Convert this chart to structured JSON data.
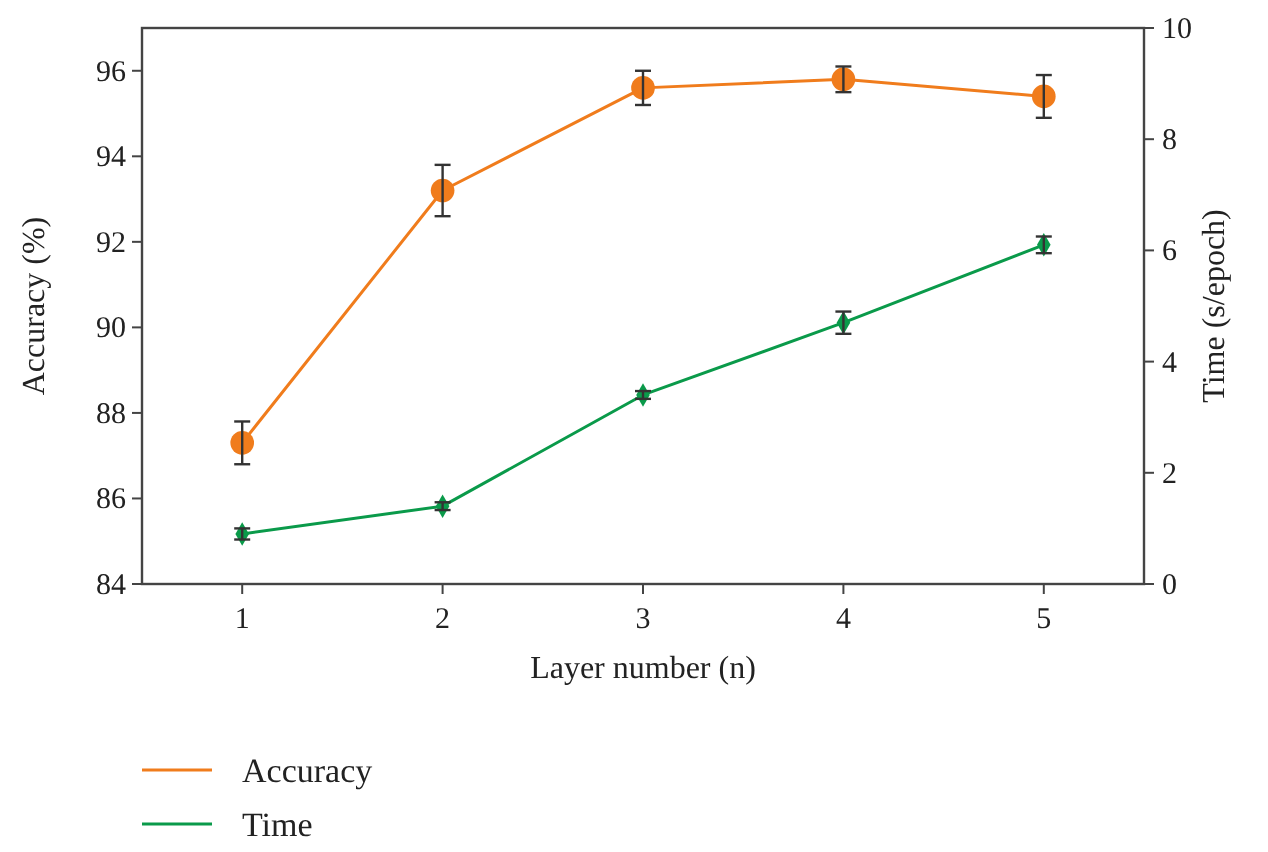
{
  "chart_data": {
    "type": "line",
    "xlabel": "Layer number (n)",
    "ylabel": "Accuracy (%)",
    "y2label": "Time (s/epoch)",
    "x": [
      1,
      2,
      3,
      4,
      5
    ],
    "xlim": [
      0.5,
      5.5
    ],
    "xticks": [
      1,
      2,
      3,
      4,
      5
    ],
    "ylim": [
      84,
      97
    ],
    "yticks": [
      84,
      86,
      88,
      90,
      92,
      94,
      96
    ],
    "y2lim": [
      0,
      10
    ],
    "y2ticks": [
      0,
      2,
      4,
      6,
      8,
      10
    ],
    "series": [
      {
        "name": "Accuracy",
        "color": "#f07c1c",
        "marker": "circle",
        "values": [
          87.3,
          93.2,
          95.6,
          95.8,
          95.4
        ],
        "errors": [
          0.5,
          0.6,
          0.4,
          0.3,
          0.5
        ]
      },
      {
        "name": "Time",
        "color": "#0a9a4a",
        "marker": "diamond",
        "axis": "y2",
        "values": [
          0.9,
          1.4,
          3.4,
          4.7,
          6.1
        ],
        "errors": [
          0.1,
          0.07,
          0.07,
          0.2,
          0.15
        ]
      }
    ],
    "grid": false,
    "legend": "bottom left",
    "line_style": "solid"
  }
}
